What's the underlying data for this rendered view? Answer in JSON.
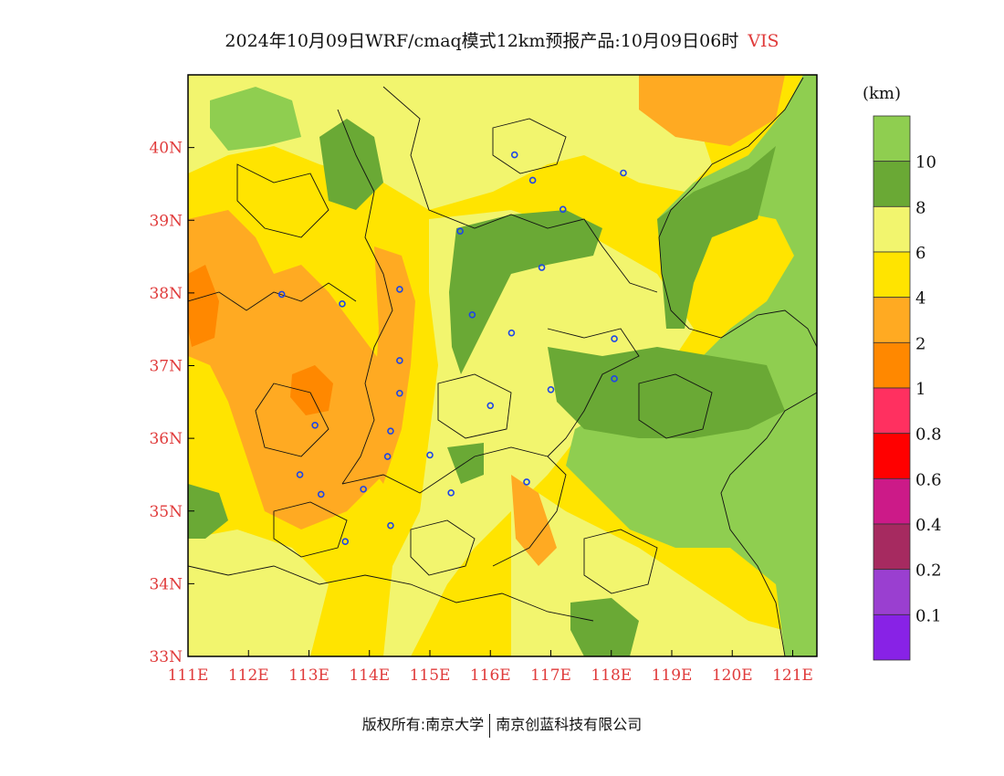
{
  "title": {
    "main": "2024年10月09日WRF/cmaq模式12km预报产品:10月09日06时",
    "variable": "VIS"
  },
  "colorbar": {
    "unit": "(km)",
    "labels": [
      "10",
      "8",
      "6",
      "4",
      "2",
      "1",
      "0.8",
      "0.6",
      "0.4",
      "0.2",
      "0.1"
    ],
    "colors": [
      "#8fce50",
      "#6aa935",
      "#f2f56e",
      "#ffe400",
      "#ffaa22",
      "#ff8800",
      "#ff3060",
      "#ff0000",
      "#cc1a88",
      "#a62a60",
      "#9a3fd0",
      "#8822e6"
    ]
  },
  "map": {
    "lon_range": [
      111,
      121.4
    ],
    "lat_range": [
      33,
      41
    ],
    "x_ticks": [
      "111E",
      "112E",
      "113E",
      "114E",
      "115E",
      "116E",
      "117E",
      "118E",
      "119E",
      "120E",
      "121E"
    ],
    "y_ticks": [
      "33N",
      "34N",
      "35N",
      "36N",
      "37N",
      "38N",
      "39N",
      "40N"
    ],
    "stations": [
      [
        116.4,
        39.9
      ],
      [
        116.7,
        39.55
      ],
      [
        118.2,
        39.65
      ],
      [
        117.2,
        39.15
      ],
      [
        115.5,
        38.85
      ],
      [
        116.85,
        38.35
      ],
      [
        114.5,
        38.05
      ],
      [
        112.55,
        37.98
      ],
      [
        113.55,
        37.85
      ],
      [
        115.7,
        37.7
      ],
      [
        116.35,
        37.45
      ],
      [
        118.05,
        37.37
      ],
      [
        114.5,
        37.07
      ],
      [
        118.05,
        36.82
      ],
      [
        117.0,
        36.67
      ],
      [
        114.5,
        36.62
      ],
      [
        116.0,
        36.45
      ],
      [
        113.1,
        36.18
      ],
      [
        114.35,
        36.1
      ],
      [
        114.3,
        35.75
      ],
      [
        115.0,
        35.77
      ],
      [
        112.85,
        35.5
      ],
      [
        116.6,
        35.4
      ],
      [
        113.9,
        35.3
      ],
      [
        113.2,
        35.23
      ],
      [
        115.35,
        35.25
      ],
      [
        114.35,
        34.8
      ],
      [
        113.6,
        34.58
      ]
    ]
  },
  "footer": {
    "left": "版权所有:南京大学",
    "right": "南京创蓝科技有限公司"
  }
}
